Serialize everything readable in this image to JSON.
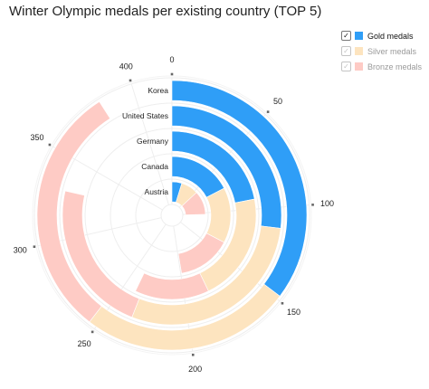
{
  "chart_data": {
    "type": "bar",
    "subtype": "radial-stacked-bar",
    "title": "Winter Olympic medals per existing country (TOP 5)",
    "categories": [
      "Korea",
      "United States",
      "Germany",
      "Canada",
      "Austria"
    ],
    "series": [
      {
        "name": "Gold medals",
        "values": [
          148,
          113,
          92,
          73,
          20
        ],
        "color": "#2f9ef7",
        "visible": true
      },
      {
        "name": "Silver medals",
        "values": [
          106,
          122,
          88,
          64,
          35
        ],
        "color": "#fde4bf",
        "visible": false
      },
      {
        "name": "Bronze medals",
        "values": [
          128,
          95,
          60,
          62,
          48
        ],
        "color": "#fecbc5",
        "visible": false
      }
    ],
    "axis": {
      "min": 0,
      "max": 420,
      "ticks": [
        0,
        50,
        100,
        150,
        200,
        250,
        300,
        350,
        400
      ]
    },
    "legend_position": "top-right",
    "grid": true
  }
}
